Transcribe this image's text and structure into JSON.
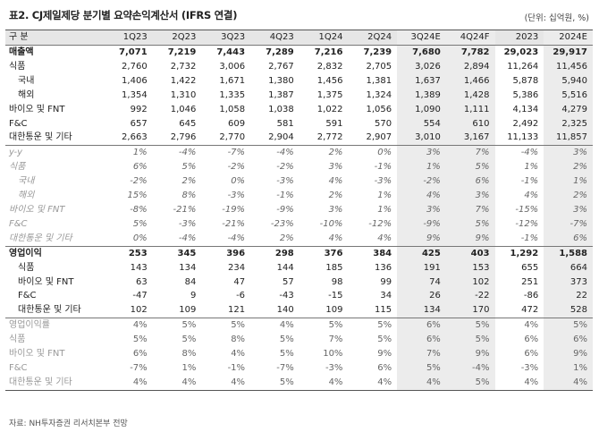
{
  "title": "표2. CJ제일제당 분기별 요약손익계산서 (IFRS 연결)",
  "unit": "(단위: 십억원, %)",
  "header": [
    "구 분",
    "1Q23",
    "2Q23",
    "3Q23",
    "4Q23",
    "1Q24",
    "2Q24",
    "3Q24E",
    "4Q24F",
    "2023",
    "2024E"
  ],
  "rows": [
    {
      "label": "매출액",
      "cls": "bold",
      "values": [
        "7,071",
        "7,219",
        "7,443",
        "7,289",
        "7,216",
        "7,239",
        "7,680",
        "7,782",
        "29,023",
        "29,917"
      ]
    },
    {
      "label": "식품",
      "cls": "",
      "values": [
        "2,760",
        "2,732",
        "3,006",
        "2,767",
        "2,832",
        "2,705",
        "3,026",
        "2,894",
        "11,264",
        "11,456"
      ]
    },
    {
      "label": "국내",
      "cls": "sub",
      "values": [
        "1,406",
        "1,422",
        "1,671",
        "1,380",
        "1,456",
        "1,381",
        "1,637",
        "1,466",
        "5,878",
        "5,940"
      ]
    },
    {
      "label": "해외",
      "cls": "sub",
      "values": [
        "1,354",
        "1,310",
        "1,335",
        "1,387",
        "1,375",
        "1,324",
        "1,389",
        "1,428",
        "5,386",
        "5,516"
      ]
    },
    {
      "label": "바이오 및 FNT",
      "cls": "",
      "values": [
        "992",
        "1,046",
        "1,058",
        "1,038",
        "1,022",
        "1,056",
        "1,090",
        "1,111",
        "4,134",
        "4,279"
      ]
    },
    {
      "label": "F&C",
      "cls": "",
      "values": [
        "657",
        "645",
        "609",
        "581",
        "591",
        "570",
        "554",
        "610",
        "2,492",
        "2,325"
      ]
    },
    {
      "label": "대한통운 및 기타",
      "cls": "",
      "values": [
        "2,663",
        "2,796",
        "2,770",
        "2,904",
        "2,772",
        "2,907",
        "3,010",
        "3,167",
        "11,133",
        "11,857"
      ]
    },
    {
      "label": "y-y",
      "cls": "pct sec-start",
      "values": [
        "1%",
        "-4%",
        "-7%",
        "-4%",
        "2%",
        "0%",
        "3%",
        "7%",
        "-4%",
        "3%"
      ]
    },
    {
      "label": "식품",
      "cls": "pct",
      "values": [
        "6%",
        "5%",
        "-2%",
        "-2%",
        "3%",
        "-1%",
        "1%",
        "5%",
        "1%",
        "2%"
      ]
    },
    {
      "label": "국내",
      "cls": "pct sub",
      "values": [
        "-2%",
        "2%",
        "0%",
        "-3%",
        "4%",
        "-3%",
        "-2%",
        "6%",
        "-1%",
        "1%"
      ]
    },
    {
      "label": "해외",
      "cls": "pct sub",
      "values": [
        "15%",
        "8%",
        "-3%",
        "-1%",
        "2%",
        "1%",
        "4%",
        "3%",
        "4%",
        "2%"
      ]
    },
    {
      "label": "바이오 및 FNT",
      "cls": "pct",
      "values": [
        "-8%",
        "-21%",
        "-19%",
        "-9%",
        "3%",
        "1%",
        "3%",
        "7%",
        "-15%",
        "3%"
      ]
    },
    {
      "label": "F&C",
      "cls": "pct",
      "values": [
        "5%",
        "-3%",
        "-21%",
        "-23%",
        "-10%",
        "-12%",
        "-9%",
        "5%",
        "-12%",
        "-7%"
      ]
    },
    {
      "label": "대한통운 및 기타",
      "cls": "pct",
      "values": [
        "0%",
        "-4%",
        "-4%",
        "2%",
        "4%",
        "4%",
        "9%",
        "9%",
        "-1%",
        "6%"
      ]
    },
    {
      "label": "영업이익",
      "cls": "bold sec-start",
      "values": [
        "253",
        "345",
        "396",
        "298",
        "376",
        "384",
        "425",
        "403",
        "1,292",
        "1,588"
      ]
    },
    {
      "label": "식품",
      "cls": "sub",
      "values": [
        "143",
        "134",
        "234",
        "144",
        "185",
        "136",
        "191",
        "153",
        "655",
        "664"
      ]
    },
    {
      "label": "바이오 및 FNT",
      "cls": "sub",
      "values": [
        "63",
        "84",
        "47",
        "57",
        "98",
        "99",
        "74",
        "102",
        "251",
        "373"
      ]
    },
    {
      "label": "F&C",
      "cls": "sub",
      "values": [
        "-47",
        "9",
        "-6",
        "-43",
        "-15",
        "34",
        "26",
        "-22",
        "-86",
        "22"
      ]
    },
    {
      "label": "대한통운 및 기타",
      "cls": "sub",
      "values": [
        "102",
        "109",
        "121",
        "140",
        "109",
        "115",
        "134",
        "170",
        "472",
        "528"
      ]
    },
    {
      "label": "영업이익률",
      "cls": "gray sec-start",
      "values": [
        "4%",
        "5%",
        "5%",
        "4%",
        "5%",
        "5%",
        "6%",
        "5%",
        "4%",
        "5%"
      ]
    },
    {
      "label": "식품",
      "cls": "gray",
      "values": [
        "5%",
        "5%",
        "8%",
        "5%",
        "7%",
        "5%",
        "6%",
        "5%",
        "6%",
        "6%"
      ]
    },
    {
      "label": "바이오 및 FNT",
      "cls": "gray",
      "values": [
        "6%",
        "8%",
        "4%",
        "5%",
        "10%",
        "9%",
        "7%",
        "9%",
        "6%",
        "9%"
      ]
    },
    {
      "label": "F&C",
      "cls": "gray",
      "values": [
        "-7%",
        "1%",
        "-1%",
        "-7%",
        "-3%",
        "6%",
        "5%",
        "-4%",
        "-3%",
        "1%"
      ]
    },
    {
      "label": "대한통운 및 기타",
      "cls": "gray",
      "values": [
        "4%",
        "4%",
        "4%",
        "5%",
        "4%",
        "4%",
        "4%",
        "5%",
        "4%",
        "4%"
      ]
    }
  ],
  "source": "자료: NH투자증권 리서치본부 전망"
}
